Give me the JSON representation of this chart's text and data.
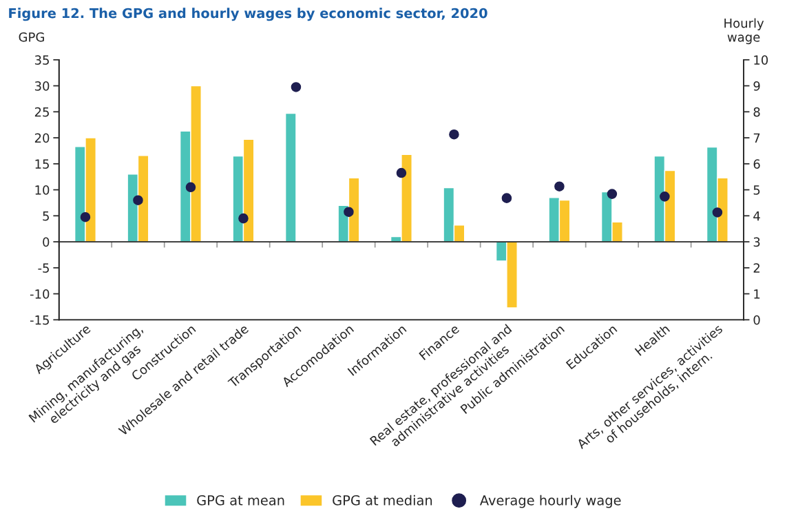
{
  "chart_data": {
    "type": "bar",
    "title": "Figure 12. The GPG and hourly wages by economic sector, 2020",
    "categories": [
      "Agriculture",
      "Mining, manufacturing,\nelectricity and gas",
      "Construction",
      "Wholesale and retail trade",
      "Transportation",
      "Accomodation",
      "Information",
      "Finance",
      "Real estate, professional and\nadministrative activities",
      "Public administration",
      "Education",
      "Health",
      "Arts, other services, activities\nof households, intern."
    ],
    "series": [
      {
        "name": "GPG at mean",
        "color": "#4bc4b9",
        "values": [
          18.3,
          13,
          21.3,
          16.5,
          24.7,
          7,
          1,
          10.4,
          -3.7,
          8.5,
          9.6,
          16.5,
          18.2
        ]
      },
      {
        "name": "GPG at median",
        "color": "#fbc52a",
        "values": [
          20,
          16.6,
          30,
          19.7,
          null,
          12.3,
          16.8,
          3.2,
          -12.7,
          8,
          3.8,
          13.7,
          12.3
        ]
      },
      {
        "name": "Average hourly wage",
        "type": "scatter",
        "axis": "y2",
        "marker": "circle",
        "color": "#1e1e50",
        "values": [
          3.95,
          4.6,
          5.1,
          3.9,
          8.95,
          4.15,
          5.65,
          7.13,
          4.68,
          5.13,
          4.84,
          4.74,
          4.13
        ]
      }
    ],
    "ylabel": "GPG",
    "y2label": "Hourly\nwage",
    "ylim": [
      -15,
      35
    ],
    "yticks": [
      -15,
      -10,
      -5,
      0,
      5,
      10,
      15,
      20,
      25,
      30,
      35
    ],
    "y2lim": [
      0,
      10
    ],
    "y2ticks": [
      0,
      1,
      2,
      3,
      4,
      5,
      6,
      7,
      8,
      9,
      10
    ],
    "legend": "bottom"
  }
}
